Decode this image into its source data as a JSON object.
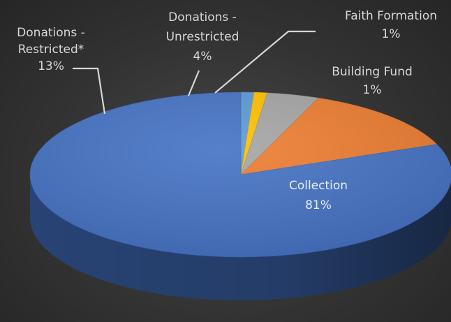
{
  "chart_data": {
    "type": "pie",
    "style": "3d",
    "categories": [
      "Collection",
      "Donations - Restricted*",
      "Donations - Unrestricted",
      "Faith Formation",
      "Building Fund"
    ],
    "values": [
      81,
      13,
      4,
      1,
      1
    ],
    "value_labels": [
      "81%",
      "13%",
      "4%",
      "1%",
      "1%"
    ],
    "colors": [
      "#4472C4",
      "#ED7D31",
      "#A5A5A5",
      "#FFC000",
      "#5B9BD5"
    ],
    "legend": "none",
    "data_labels": [
      {
        "lines": [
          "Collection"
        ],
        "value": "81%"
      },
      {
        "lines": [
          "Donations -",
          "Restricted*"
        ],
        "value": "13%"
      },
      {
        "lines": [
          "Donations -",
          "Unrestricted"
        ],
        "value": "4%"
      },
      {
        "lines": [
          "Faith Formation"
        ],
        "value": "1%"
      },
      {
        "lines": [
          "Building Fund"
        ],
        "value": "1%"
      }
    ]
  }
}
